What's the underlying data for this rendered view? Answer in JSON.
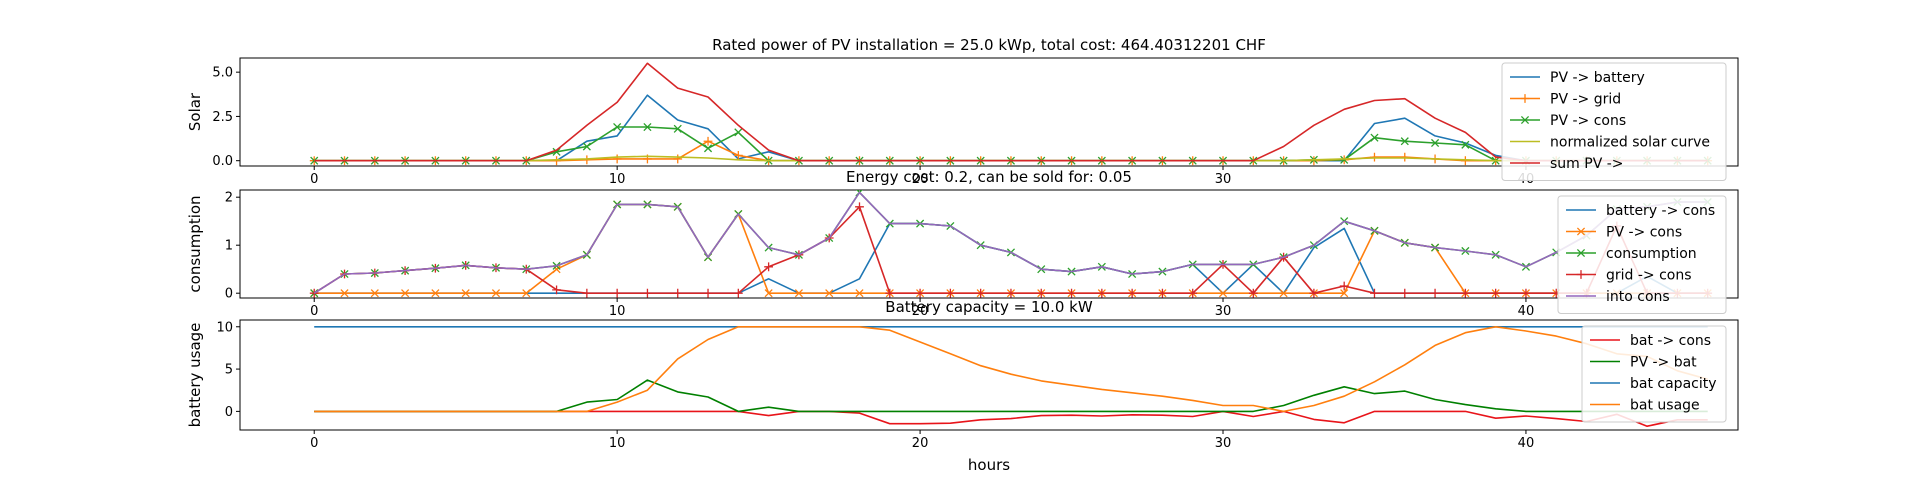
{
  "chart_data": [
    {
      "type": "line",
      "title": "Rated power of PV installation = 25.0 kWp, total cost: 464.40312201 CHF",
      "xlabel": "",
      "ylabel": "Solar",
      "xlim": [
        -2.45,
        47
      ],
      "ylim": [
        -0.3,
        5.8
      ],
      "xticks": [
        "0",
        "10",
        "20",
        "30",
        "40"
      ],
      "yticks": [
        "0.0",
        "2.5",
        "5.0"
      ],
      "legend_position": "top-right",
      "x": [
        0,
        1,
        2,
        3,
        4,
        5,
        6,
        7,
        8,
        9,
        10,
        11,
        12,
        13,
        14,
        15,
        16,
        17,
        18,
        19,
        20,
        21,
        22,
        23,
        24,
        25,
        26,
        27,
        28,
        29,
        30,
        31,
        32,
        33,
        34,
        35,
        36,
        37,
        38,
        39,
        40,
        41,
        42,
        43,
        44,
        45,
        46
      ],
      "series": [
        {
          "name": "PV -> battery",
          "color": "#1f77b4",
          "marker": "none",
          "values": [
            0,
            0,
            0,
            0,
            0,
            0,
            0,
            0,
            0,
            1.1,
            1.4,
            3.7,
            2.3,
            1.8,
            0.1,
            0.5,
            0,
            0,
            0,
            0,
            0,
            0,
            0,
            0,
            0,
            0,
            0,
            0,
            0,
            0,
            0,
            0,
            0,
            0,
            0,
            2.1,
            2.4,
            1.4,
            1.0,
            0.3,
            0,
            0,
            0,
            0,
            0,
            0,
            0
          ]
        },
        {
          "name": "PV -> grid",
          "color": "#ff7f0e",
          "marker": "plus",
          "values": [
            0,
            0,
            0,
            0,
            0,
            0,
            0,
            0,
            0,
            0.05,
            0.1,
            0.1,
            0.1,
            1.1,
            0.3,
            0,
            0,
            0,
            0,
            0,
            0,
            0,
            0,
            0,
            0,
            0,
            0,
            0,
            0,
            0,
            0,
            0,
            0,
            0,
            0.05,
            0.2,
            0.2,
            0.1,
            0,
            0,
            0,
            0,
            0,
            0,
            0,
            0,
            0
          ]
        },
        {
          "name": "PV -> cons",
          "color": "#2ca02c",
          "marker": "x",
          "values": [
            0,
            0,
            0,
            0,
            0,
            0,
            0,
            0,
            0.5,
            0.8,
            1.9,
            1.9,
            1.8,
            0.7,
            1.6,
            0,
            0,
            0,
            0,
            0,
            0,
            0,
            0,
            0,
            0,
            0,
            0,
            0,
            0,
            0,
            0,
            0,
            0,
            0.05,
            0.05,
            1.3,
            1.1,
            1.0,
            0.9,
            0,
            0,
            0,
            0,
            0,
            0,
            0,
            0
          ]
        },
        {
          "name": "normalized solar curve",
          "color": "#bcbd22",
          "marker": "none",
          "values": [
            0,
            0,
            0,
            0,
            0,
            0,
            0,
            0,
            0.05,
            0.1,
            0.2,
            0.25,
            0.2,
            0.15,
            0.05,
            0,
            0,
            0,
            0,
            0,
            0,
            0,
            0,
            0,
            0,
            0,
            0,
            0,
            0,
            0,
            0,
            0,
            0,
            0.05,
            0.1,
            0.15,
            0.15,
            0.1,
            0.05,
            0,
            0,
            0,
            0,
            0,
            0,
            0,
            0
          ]
        },
        {
          "name": "sum PV ->",
          "color": "#d62728",
          "marker": "none",
          "values": [
            0,
            0,
            0,
            0,
            0,
            0,
            0,
            0,
            0.6,
            2.0,
            3.3,
            5.5,
            4.1,
            3.6,
            2.0,
            0.6,
            0,
            0,
            0,
            0,
            0,
            0,
            0,
            0,
            0,
            0,
            0,
            0,
            0,
            0,
            0,
            0,
            0.8,
            2.0,
            2.9,
            3.4,
            3.5,
            2.4,
            1.6,
            0.2,
            0,
            0,
            0,
            0,
            0,
            0,
            0
          ]
        }
      ]
    },
    {
      "type": "line",
      "title": "Energy cost: 0.2, can be sold for: 0.05",
      "xlabel": "",
      "ylabel": "consumption",
      "xlim": [
        -2.45,
        47
      ],
      "ylim": [
        -0.1,
        2.15
      ],
      "xticks": [
        "0",
        "10",
        "20",
        "30",
        "40"
      ],
      "yticks": [
        "0",
        "1",
        "2"
      ],
      "legend_position": "top-right",
      "x": [
        0,
        1,
        2,
        3,
        4,
        5,
        6,
        7,
        8,
        9,
        10,
        11,
        12,
        13,
        14,
        15,
        16,
        17,
        18,
        19,
        20,
        21,
        22,
        23,
        24,
        25,
        26,
        27,
        28,
        29,
        30,
        31,
        32,
        33,
        34,
        35,
        36,
        37,
        38,
        39,
        40,
        41,
        42,
        43,
        44,
        45,
        46
      ],
      "series": [
        {
          "name": "battery -> cons",
          "color": "#1f77b4",
          "marker": "none",
          "values": [
            0,
            0,
            0,
            0,
            0,
            0,
            0,
            0,
            0,
            0,
            0,
            0,
            0,
            0,
            0,
            0.3,
            0,
            0,
            0.3,
            1.45,
            1.45,
            1.4,
            1.0,
            0.85,
            0.5,
            0.45,
            0.55,
            0.4,
            0.45,
            0.6,
            0,
            0.6,
            0,
            0.95,
            1.35,
            0,
            0,
            0,
            0,
            0,
            0,
            0,
            0,
            0,
            0.35,
            0,
            0
          ]
        },
        {
          "name": "PV -> cons",
          "color": "#ff7f0e",
          "marker": "x",
          "values": [
            0,
            0,
            0,
            0,
            0,
            0,
            0,
            0,
            0.5,
            0.8,
            1.85,
            1.85,
            1.8,
            0.75,
            1.65,
            0,
            0,
            0,
            0,
            0,
            0,
            0,
            0,
            0,
            0,
            0,
            0,
            0,
            0,
            0,
            0,
            0,
            0,
            0,
            0,
            1.3,
            1.05,
            0.95,
            0,
            0,
            0,
            0,
            0,
            0,
            0,
            0,
            0
          ]
        },
        {
          "name": "consumption",
          "color": "#2ca02c",
          "marker": "x",
          "values": [
            0,
            0.4,
            0.42,
            0.47,
            0.52,
            0.58,
            0.53,
            0.5,
            0.57,
            0.8,
            1.85,
            1.85,
            1.8,
            0.75,
            1.65,
            0.95,
            0.8,
            1.15,
            2.1,
            1.45,
            1.45,
            1.4,
            1.0,
            0.85,
            0.5,
            0.45,
            0.55,
            0.4,
            0.45,
            0.6,
            0.6,
            0.6,
            0.75,
            1.0,
            1.5,
            1.3,
            1.05,
            0.95,
            0.88,
            0.8,
            0.55,
            0.85,
            1.2,
            1.75,
            1.8,
            1.9,
            1.9
          ]
        },
        {
          "name": "grid -> cons",
          "color": "#d62728",
          "marker": "plus",
          "values": [
            0,
            0.4,
            0.42,
            0.47,
            0.52,
            0.58,
            0.53,
            0.5,
            0.07,
            0,
            0,
            0,
            0,
            0,
            0,
            0.55,
            0.8,
            1.15,
            1.8,
            0,
            0,
            0,
            0,
            0,
            0,
            0,
            0,
            0,
            0,
            0,
            0.6,
            0,
            0.75,
            0,
            0.15,
            0,
            0,
            0,
            0,
            0,
            0,
            0,
            0,
            1.4,
            0,
            0,
            0
          ]
        },
        {
          "name": "into cons",
          "color": "#9467bd",
          "marker": "none",
          "values": [
            0,
            0.4,
            0.42,
            0.47,
            0.52,
            0.58,
            0.53,
            0.5,
            0.57,
            0.8,
            1.85,
            1.85,
            1.8,
            0.75,
            1.65,
            0.95,
            0.8,
            1.15,
            2.1,
            1.45,
            1.45,
            1.4,
            1.0,
            0.85,
            0.5,
            0.45,
            0.55,
            0.4,
            0.45,
            0.6,
            0.6,
            0.6,
            0.75,
            1.0,
            1.5,
            1.3,
            1.05,
            0.95,
            0.88,
            0.8,
            0.55,
            0.85,
            1.2,
            1.75,
            1.8,
            1.9,
            1.9
          ]
        }
      ]
    },
    {
      "type": "line",
      "title": "Battery capacity = 10.0 kW",
      "xlabel": "hours",
      "ylabel": "battery usage",
      "xlim": [
        -2.45,
        47
      ],
      "ylim": [
        -2.2,
        10.8
      ],
      "xticks": [
        "0",
        "10",
        "20",
        "30",
        "40"
      ],
      "yticks": [
        "0",
        "5",
        "10"
      ],
      "legend_position": "top-right",
      "x": [
        0,
        1,
        2,
        3,
        4,
        5,
        6,
        7,
        8,
        9,
        10,
        11,
        12,
        13,
        14,
        15,
        16,
        17,
        18,
        19,
        20,
        21,
        22,
        23,
        24,
        25,
        26,
        27,
        28,
        29,
        30,
        31,
        32,
        33,
        34,
        35,
        36,
        37,
        38,
        39,
        40,
        41,
        42,
        43,
        44,
        45,
        46
      ],
      "series": [
        {
          "name": "bat -> cons",
          "color": "#e8141a",
          "marker": "none",
          "values": [
            0,
            0,
            0,
            0,
            0,
            0,
            0,
            0,
            0,
            0,
            0,
            0,
            0,
            0,
            0,
            -0.5,
            0,
            0,
            -0.2,
            -1.45,
            -1.45,
            -1.4,
            -1.0,
            -0.85,
            -0.5,
            -0.45,
            -0.55,
            -0.4,
            -0.45,
            -0.6,
            0,
            -0.6,
            0,
            -0.95,
            -1.35,
            0,
            0,
            0,
            0,
            -0.8,
            -0.55,
            -0.85,
            -1.2,
            -0.35,
            -1.75,
            -1.0,
            -1.0
          ]
        },
        {
          "name": "PV -> bat",
          "color": "#008000",
          "marker": "none",
          "values": [
            0,
            0,
            0,
            0,
            0,
            0,
            0,
            0,
            0,
            1.1,
            1.4,
            3.7,
            2.3,
            1.7,
            0,
            0.5,
            0,
            0,
            0,
            0,
            0,
            0,
            0,
            0,
            0,
            0,
            0,
            0,
            0,
            0,
            0,
            0,
            0.7,
            1.9,
            2.9,
            2.1,
            2.4,
            1.4,
            0.8,
            0.3,
            0,
            0,
            0,
            0,
            0,
            0,
            0
          ]
        },
        {
          "name": "bat capacity",
          "color": "#1f77b4",
          "marker": "none",
          "values": [
            10,
            10,
            10,
            10,
            10,
            10,
            10,
            10,
            10,
            10,
            10,
            10,
            10,
            10,
            10,
            10,
            10,
            10,
            10,
            10,
            10,
            10,
            10,
            10,
            10,
            10,
            10,
            10,
            10,
            10,
            10,
            10,
            10,
            10,
            10,
            10,
            10,
            10,
            10,
            10,
            10,
            10,
            10,
            10,
            10,
            10,
            10
          ]
        },
        {
          "name": "bat usage",
          "color": "#ff7f0e",
          "marker": "none",
          "values": [
            0,
            0,
            0,
            0,
            0,
            0,
            0,
            0,
            0,
            0,
            1.1,
            2.5,
            6.2,
            8.5,
            10,
            10,
            10,
            10,
            10,
            9.6,
            8.2,
            6.8,
            5.4,
            4.4,
            3.6,
            3.1,
            2.6,
            2.2,
            1.8,
            1.3,
            0.7,
            0.7,
            0,
            0.7,
            1.8,
            3.5,
            5.5,
            7.8,
            9.3,
            10,
            9.5,
            8.9,
            8.0,
            6.8,
            6.5,
            4.8,
            3.8
          ]
        }
      ]
    }
  ]
}
